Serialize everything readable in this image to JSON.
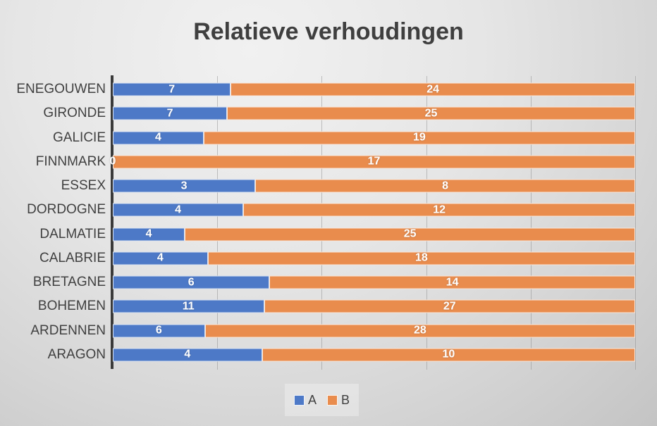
{
  "chart_data": {
    "type": "bar",
    "orientation": "horizontal",
    "stacking": "100%",
    "title": "Relatieve verhoudingen",
    "categories": [
      "ENEGOUWEN",
      "GIRONDE",
      "GALICIE",
      "FINNMARK",
      "ESSEX",
      "DORDOGNE",
      "DALMATIE",
      "CALABRIE",
      "BRETAGNE",
      "BOHEMEN",
      "ARDENNEN",
      "ARAGON"
    ],
    "series": [
      {
        "name": "A",
        "color": "#4D79C7",
        "values": [
          7,
          7,
          4,
          0,
          3,
          4,
          4,
          4,
          6,
          11,
          6,
          4
        ]
      },
      {
        "name": "B",
        "color": "#E98C4D",
        "values": [
          24,
          25,
          19,
          17,
          8,
          12,
          25,
          18,
          14,
          27,
          28,
          10
        ]
      }
    ],
    "data_labels": {
      "visible": true,
      "color": "#FFFFFF"
    },
    "legend": {
      "position": "bottom",
      "entries": [
        "A",
        "B"
      ]
    },
    "value_axis": {
      "min_pct": 0,
      "max_pct": 100,
      "gridline_positions_pct": [
        20,
        40,
        60,
        80,
        100
      ],
      "labels_visible": false
    },
    "grid": true
  },
  "style": {
    "title_color": "#3F3F3F",
    "category_label_color": "#404040",
    "axis_line_color": "#3A3A3A",
    "gridline_color": "rgba(140,140,140,0.5)",
    "background_top": "#F1F1F1",
    "background_bottom": "#C4C4C4",
    "legend_panel_bg": "rgba(255,255,255,0.30)"
  }
}
